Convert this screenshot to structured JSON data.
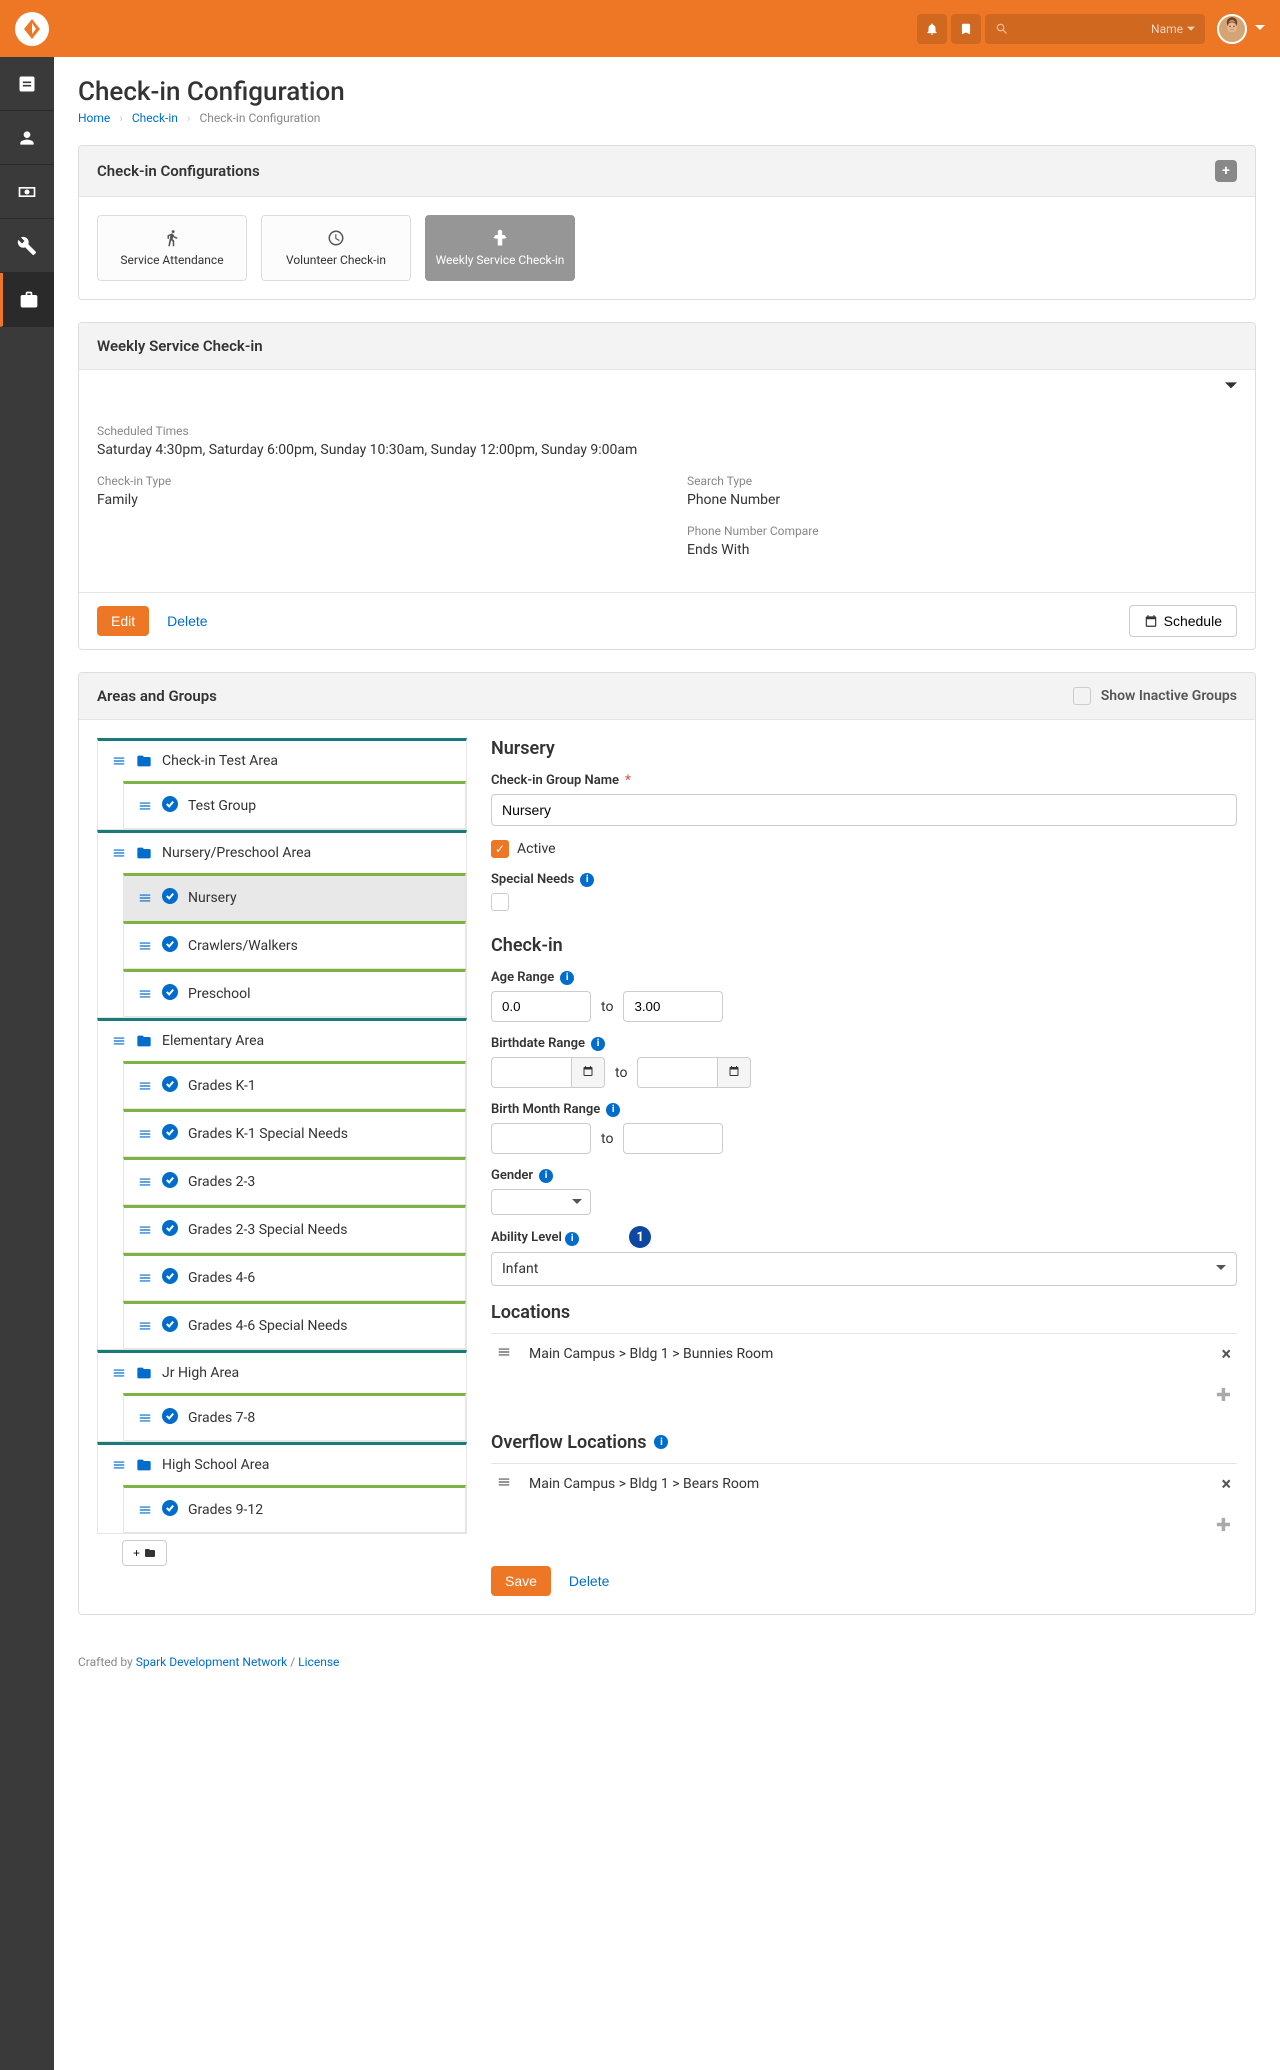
{
  "topbar": {
    "name_label": "Name",
    "search_placeholder": ""
  },
  "page": {
    "title": "Check-in Configuration",
    "breadcrumb": {
      "home": "Home",
      "checkin": "Check-in",
      "current": "Check-in Configuration"
    }
  },
  "configs": {
    "heading": "Check-in Configurations",
    "cards": [
      {
        "label": "Service Attendance"
      },
      {
        "label": "Volunteer Check-in"
      },
      {
        "label": "Weekly Service Check-in"
      }
    ]
  },
  "detail": {
    "heading": "Weekly Service Check-in",
    "scheduled_label": "Scheduled Times",
    "scheduled_value": "Saturday 4:30pm, Saturday 6:00pm, Sunday 10:30am, Sunday 12:00pm, Sunday 9:00am",
    "checkin_type_label": "Check-in Type",
    "checkin_type_value": "Family",
    "search_type_label": "Search Type",
    "search_type_value": "Phone Number",
    "phone_compare_label": "Phone Number Compare",
    "phone_compare_value": "Ends With",
    "edit": "Edit",
    "delete": "Delete",
    "schedule": "Schedule"
  },
  "areas": {
    "heading": "Areas and Groups",
    "show_inactive": "Show Inactive Groups",
    "tree": [
      {
        "label": "Check-in Test Area",
        "type": "area",
        "children": [
          {
            "label": "Test Group",
            "type": "group"
          }
        ]
      },
      {
        "label": "Nursery/Preschool Area",
        "type": "area",
        "children": [
          {
            "label": "Nursery",
            "type": "group",
            "selected": true
          },
          {
            "label": "Crawlers/Walkers",
            "type": "group"
          },
          {
            "label": "Preschool",
            "type": "group"
          }
        ]
      },
      {
        "label": "Elementary Area",
        "type": "area",
        "children": [
          {
            "label": "Grades K-1",
            "type": "group"
          },
          {
            "label": "Grades K-1 Special Needs",
            "type": "group"
          },
          {
            "label": "Grades 2-3",
            "type": "group"
          },
          {
            "label": "Grades 2-3 Special Needs",
            "type": "group"
          },
          {
            "label": "Grades 4-6",
            "type": "group"
          },
          {
            "label": "Grades 4-6 Special Needs",
            "type": "group"
          }
        ]
      },
      {
        "label": "Jr High Area",
        "type": "area",
        "children": [
          {
            "label": "Grades 7-8",
            "type": "group"
          }
        ]
      },
      {
        "label": "High School Area",
        "type": "area",
        "children": [
          {
            "label": "Grades 9-12",
            "type": "group"
          }
        ]
      }
    ]
  },
  "form": {
    "title": "Nursery",
    "name_label": "Check-in Group Name",
    "name_value": "Nursery",
    "active_label": "Active",
    "special_needs_label": "Special Needs",
    "checkin_section": "Check-in",
    "age_range_label": "Age Range",
    "age_from": "0.0",
    "age_to": "3.00",
    "to": "to",
    "birthdate_label": "Birthdate Range",
    "birthmonth_label": "Birth Month Range",
    "gender_label": "Gender",
    "ability_label": "Ability Level",
    "ability_value": "Infant",
    "callout": "1",
    "locations_title": "Locations",
    "location1": "Main Campus > Bldg 1 > Bunnies Room",
    "overflow_title": "Overflow Locations",
    "location2": "Main Campus > Bldg 1 > Bears Room",
    "save": "Save",
    "delete": "Delete"
  },
  "footer": {
    "crafted": "Crafted by ",
    "link": "Spark Development Network",
    "sep": " / ",
    "license": "License"
  }
}
